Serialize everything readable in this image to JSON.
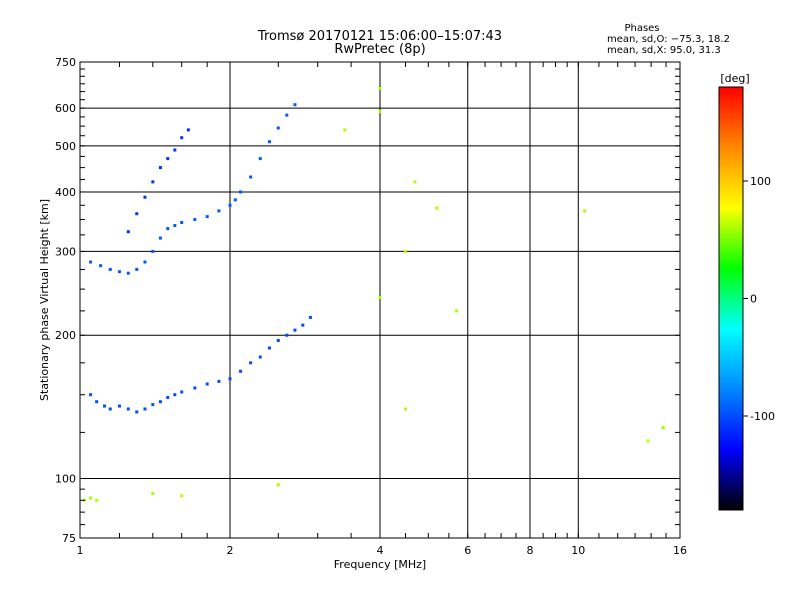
{
  "chart_data": {
    "type": "scatter",
    "title": "Tromsø 20170121 15:06:00–15:07:43",
    "subtitle": "RwPretec (8p)",
    "xlabel": "Frequency [MHz]",
    "ylabel": "Stationary phase Virtual Height [km]",
    "x_scale": "log",
    "y_scale": "log",
    "xlim": [
      1,
      16
    ],
    "ylim": [
      75,
      750
    ],
    "x_ticks": [
      1,
      2,
      4,
      6,
      8,
      10,
      16
    ],
    "y_ticks": [
      75,
      100,
      200,
      300,
      400,
      500,
      600,
      750
    ],
    "grid": true,
    "stats": {
      "heading": "Phases",
      "line_o": "mean, sd,O: −75.3, 18.2",
      "line_x": "mean, sd,X:  95.0, 31.3"
    },
    "colorbar": {
      "label": "[deg]",
      "range": [
        -180,
        180
      ],
      "ticks": [
        100,
        0,
        -100
      ],
      "colors": [
        "#ff0000",
        "#ff8800",
        "#ffff00",
        "#00ff00",
        "#00ffff",
        "#0088ff",
        "#0000ff",
        "#000000"
      ]
    },
    "series": [
      {
        "trace": "lower-F2-band",
        "points": [
          [
            1.05,
            150
          ],
          [
            1.08,
            145
          ],
          [
            1.12,
            142
          ],
          [
            1.15,
            140
          ],
          [
            1.2,
            142
          ],
          [
            1.25,
            140
          ],
          [
            1.3,
            138
          ],
          [
            1.35,
            140
          ],
          [
            1.4,
            143
          ],
          [
            1.45,
            145
          ],
          [
            1.5,
            148
          ],
          [
            1.55,
            150
          ],
          [
            1.6,
            152
          ],
          [
            1.7,
            155
          ],
          [
            1.8,
            158
          ],
          [
            1.9,
            160
          ],
          [
            2.0,
            162
          ],
          [
            2.1,
            168
          ],
          [
            2.2,
            175
          ],
          [
            2.3,
            180
          ],
          [
            2.4,
            188
          ],
          [
            2.5,
            195
          ],
          [
            2.6,
            200
          ],
          [
            2.7,
            205
          ],
          [
            2.8,
            210
          ],
          [
            2.9,
            218
          ]
        ],
        "phase_deg": -100
      },
      {
        "trace": "upper-F2-band",
        "points": [
          [
            1.05,
            285
          ],
          [
            1.1,
            280
          ],
          [
            1.15,
            275
          ],
          [
            1.2,
            272
          ],
          [
            1.25,
            270
          ],
          [
            1.3,
            275
          ],
          [
            1.35,
            285
          ],
          [
            1.4,
            300
          ],
          [
            1.45,
            320
          ],
          [
            1.5,
            335
          ],
          [
            1.55,
            340
          ],
          [
            1.6,
            345
          ],
          [
            1.7,
            350
          ],
          [
            1.8,
            355
          ],
          [
            1.9,
            365
          ],
          [
            2.0,
            375
          ],
          [
            2.05,
            385
          ],
          [
            2.1,
            400
          ],
          [
            2.2,
            430
          ],
          [
            2.3,
            470
          ],
          [
            2.4,
            510
          ],
          [
            2.5,
            545
          ],
          [
            2.6,
            580
          ],
          [
            2.7,
            610
          ]
        ],
        "phase_deg": -95
      },
      {
        "trace": "upper-diffuse-band",
        "points": [
          [
            1.25,
            330
          ],
          [
            1.3,
            360
          ],
          [
            1.35,
            390
          ],
          [
            1.4,
            420
          ],
          [
            1.45,
            450
          ],
          [
            1.5,
            470
          ],
          [
            1.55,
            490
          ],
          [
            1.6,
            520
          ],
          [
            1.65,
            540
          ]
        ],
        "phase_deg": -110
      },
      {
        "trace": "isolated-echoes",
        "points": [
          [
            1.02,
            90
          ],
          [
            1.05,
            91
          ],
          [
            1.08,
            90
          ],
          [
            1.4,
            93
          ],
          [
            1.6,
            92
          ],
          [
            2.5,
            97
          ],
          [
            4.0,
            240
          ],
          [
            4.5,
            300
          ],
          [
            4.5,
            140
          ],
          [
            5.2,
            370
          ],
          [
            5.7,
            225
          ],
          [
            10.3,
            365
          ],
          [
            13.8,
            120
          ],
          [
            14.8,
            128
          ],
          [
            4.0,
            590
          ],
          [
            4.0,
            660
          ],
          [
            3.4,
            540
          ],
          [
            4.7,
            420
          ]
        ],
        "phase_deg": 60
      }
    ]
  }
}
